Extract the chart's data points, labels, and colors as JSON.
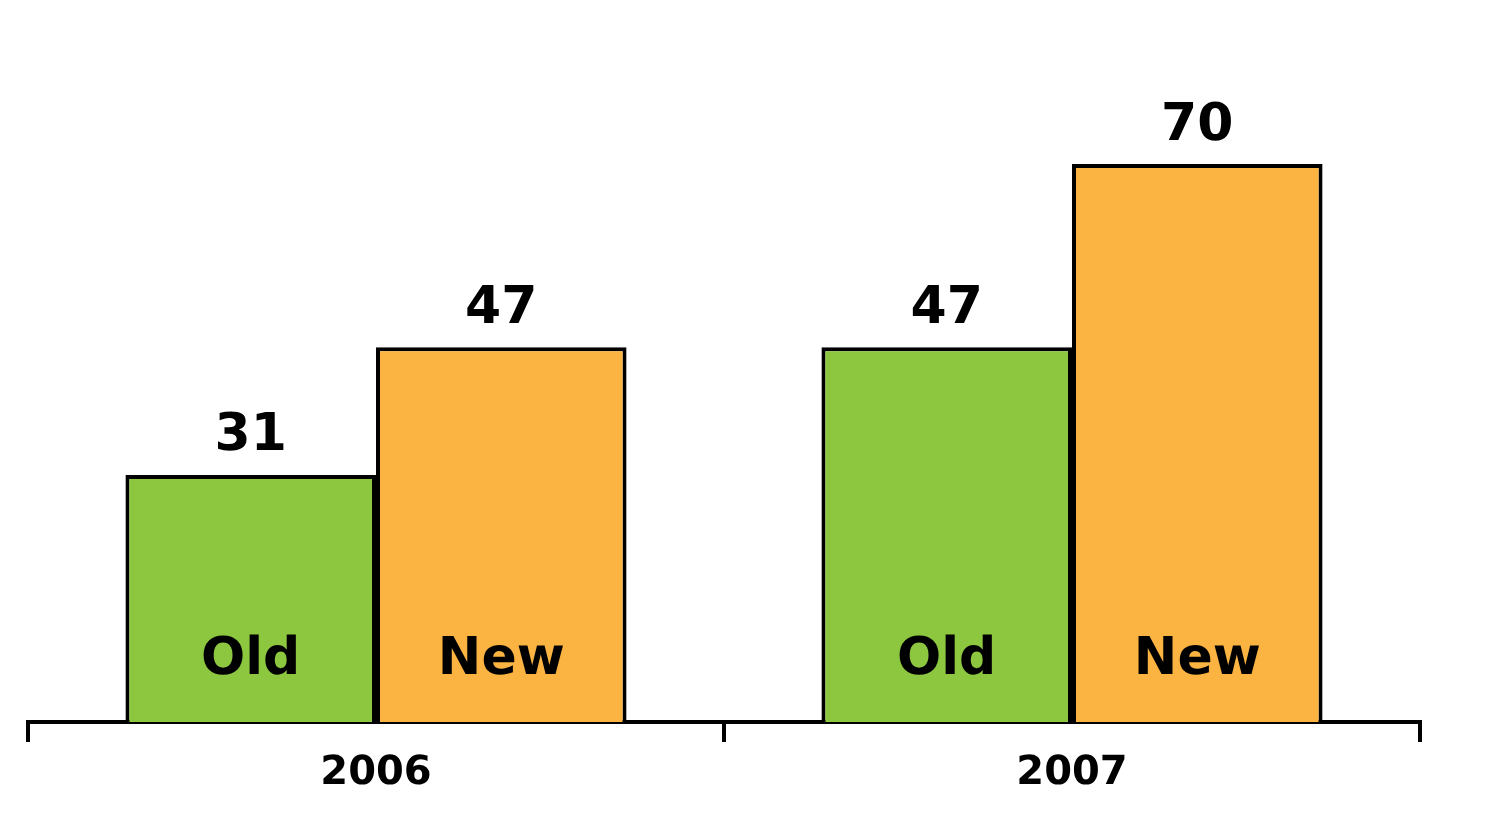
{
  "chart_data": {
    "type": "bar",
    "categories": [
      "2006",
      "2007"
    ],
    "series": [
      {
        "name": "Old",
        "color": "#8dc63f",
        "values": [
          31,
          47
        ]
      },
      {
        "name": "New",
        "color": "#fbb441",
        "values": [
          47,
          70
        ]
      }
    ],
    "data_labels": true,
    "legend": false,
    "grid": false
  }
}
